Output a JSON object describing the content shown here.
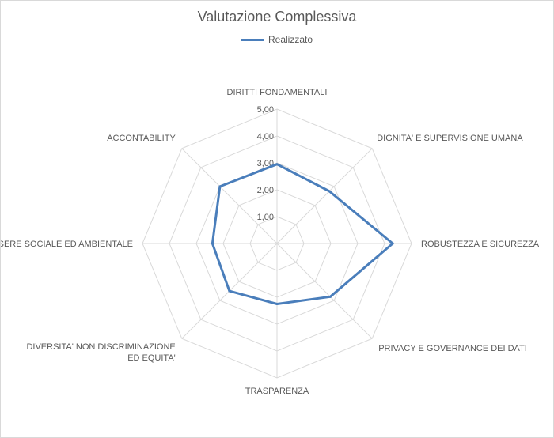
{
  "chart_data": {
    "type": "radar",
    "title": "Valutazione Complessiva",
    "legend": {
      "position": "top",
      "entries": [
        "Realizzato"
      ]
    },
    "categories": [
      "DIRITTI FONDAMENTALI",
      "DIGNITA' E SUPERVISIONE UMANA",
      "ROBUSTEZZA E SICUREZZA",
      "PRIVACY E GOVERNANCE DEI DATI",
      "TRASPARENZA",
      "DIVERSITA' NON DISCRIMINAZIONE ED EQUITA'",
      "BENESSERE SOCIALE ED AMBIENTALE",
      "ACCONTABILITY"
    ],
    "series": [
      {
        "name": "Realizzato",
        "values": [
          2.95,
          2.75,
          4.3,
          2.8,
          2.25,
          2.5,
          2.4,
          3.0
        ],
        "color": "#4a7ebb"
      }
    ],
    "rlim": [
      0,
      5
    ],
    "ticks": [
      "1,00",
      "2,00",
      "3,00",
      "4,00",
      "5,00"
    ],
    "grid": true,
    "grid_color": "#d9d9d9"
  }
}
